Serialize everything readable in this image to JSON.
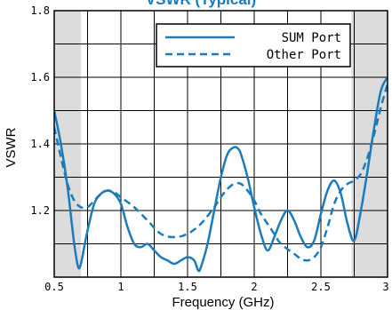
{
  "chart_data": {
    "type": "line",
    "title": "VSWR (Typical)",
    "xlabel": "Frequency (GHz)",
    "ylabel": "VSWR",
    "xlim": [
      0.5,
      3.0
    ],
    "ylim": [
      1.0,
      1.8
    ],
    "xticks": [
      0.5,
      0.75,
      1.0,
      1.25,
      1.5,
      1.75,
      2.0,
      2.25,
      2.5,
      2.75,
      3.0
    ],
    "yticks": [
      1.0,
      1.1,
      1.2,
      1.3,
      1.4,
      1.5,
      1.6,
      1.7,
      1.8
    ],
    "xtick_labels": [
      {
        "value": 0.5,
        "label": "0.5"
      },
      {
        "value": 1.0,
        "label": "1"
      },
      {
        "value": 1.5,
        "label": "1.5"
      },
      {
        "value": 2.0,
        "label": "2"
      },
      {
        "value": 2.5,
        "label": "2.5"
      },
      {
        "value": 3.0,
        "label": "3"
      }
    ],
    "ytick_labels": [
      {
        "value": 1.2,
        "label": "1.2"
      },
      {
        "value": 1.4,
        "label": "1.4"
      },
      {
        "value": 1.6,
        "label": "1.6"
      },
      {
        "value": 1.8,
        "label": "1.8"
      }
    ],
    "grid": true,
    "legend_position": "top-right",
    "shaded_regions": [
      [
        0.5,
        0.7
      ],
      [
        2.73,
        3.0
      ]
    ],
    "shade_color": "#dcdcdc",
    "line_color": "#1a7bbd",
    "series": [
      {
        "name": "SUM Port",
        "style": "solid",
        "x": [
          0.5,
          0.55,
          0.6,
          0.65,
          0.68,
          0.7,
          0.72,
          0.75,
          0.8,
          0.85,
          0.9,
          0.95,
          1.0,
          1.05,
          1.1,
          1.15,
          1.2,
          1.25,
          1.3,
          1.35,
          1.4,
          1.45,
          1.5,
          1.55,
          1.58,
          1.6,
          1.65,
          1.7,
          1.75,
          1.8,
          1.85,
          1.88,
          1.9,
          1.95,
          2.0,
          2.05,
          2.1,
          2.15,
          2.2,
          2.25,
          2.3,
          2.35,
          2.4,
          2.45,
          2.5,
          2.55,
          2.6,
          2.65,
          2.7,
          2.75,
          2.8,
          2.85,
          2.9,
          2.95,
          3.0
        ],
        "y": [
          1.5,
          1.4,
          1.27,
          1.1,
          1.03,
          1.04,
          1.08,
          1.14,
          1.22,
          1.25,
          1.26,
          1.25,
          1.22,
          1.15,
          1.1,
          1.09,
          1.1,
          1.08,
          1.06,
          1.05,
          1.04,
          1.05,
          1.06,
          1.05,
          1.02,
          1.03,
          1.1,
          1.2,
          1.3,
          1.37,
          1.39,
          1.385,
          1.37,
          1.3,
          1.21,
          1.13,
          1.08,
          1.12,
          1.17,
          1.2,
          1.17,
          1.12,
          1.09,
          1.11,
          1.19,
          1.26,
          1.29,
          1.25,
          1.16,
          1.11,
          1.2,
          1.32,
          1.45,
          1.56,
          1.6
        ]
      },
      {
        "name": "Other Port",
        "style": "dashed",
        "x": [
          0.5,
          0.55,
          0.6,
          0.65,
          0.7,
          0.75,
          0.8,
          0.85,
          0.9,
          0.95,
          1.0,
          1.1,
          1.2,
          1.3,
          1.4,
          1.5,
          1.6,
          1.7,
          1.75,
          1.8,
          1.85,
          1.9,
          1.95,
          2.0,
          2.05,
          2.1,
          2.15,
          2.2,
          2.3,
          2.35,
          2.4,
          2.45,
          2.5,
          2.55,
          2.6,
          2.65,
          2.7,
          2.75,
          2.8,
          2.85,
          2.9,
          2.95,
          3.0
        ],
        "y": [
          1.45,
          1.36,
          1.28,
          1.23,
          1.21,
          1.21,
          1.23,
          1.25,
          1.26,
          1.255,
          1.24,
          1.21,
          1.17,
          1.13,
          1.12,
          1.13,
          1.16,
          1.21,
          1.24,
          1.265,
          1.28,
          1.28,
          1.26,
          1.23,
          1.19,
          1.16,
          1.13,
          1.1,
          1.07,
          1.055,
          1.05,
          1.06,
          1.09,
          1.15,
          1.22,
          1.26,
          1.28,
          1.29,
          1.31,
          1.36,
          1.43,
          1.51,
          1.58
        ]
      }
    ]
  }
}
